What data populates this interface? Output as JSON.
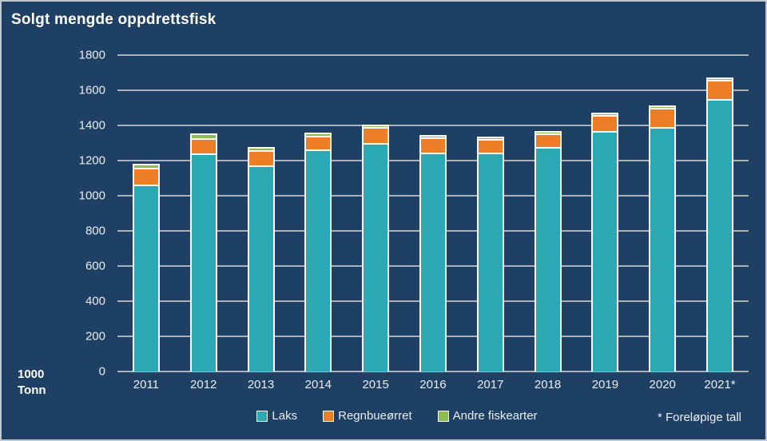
{
  "title": "Solgt mengde oppdrettsfisk",
  "y_unit": {
    "line1": "1000",
    "line2": "Tonn"
  },
  "footnote": "* Foreløpige tall",
  "colors": {
    "background": "#1D4064",
    "gridline": "#A9B2BB",
    "text": "#E9EDF2",
    "title_text": "#FFFFFF",
    "bar_border": "#FFFFFF",
    "laks": "#2AA9B4",
    "regnbueorret": "#EE7D28",
    "andre_fiskearter": "#8CBC52"
  },
  "chart_data": {
    "type": "bar",
    "stacked": true,
    "title": "Solgt mengde oppdrettsfisk",
    "ylabel": "1000 Tonn",
    "xlabel": "",
    "ylim": [
      0,
      1800
    ],
    "ytick_step": 200,
    "grid": true,
    "legend_position": "bottom",
    "annotation": "* Foreløpige tall",
    "categories": [
      "2011",
      "2012",
      "2013",
      "2014",
      "2015",
      "2016",
      "2017",
      "2018",
      "2019",
      "2020",
      "2021*"
    ],
    "series": [
      {
        "name": "Laks",
        "color": "#2AA9B4",
        "values": [
          1055,
          1230,
          1165,
          1255,
          1290,
          1235,
          1235,
          1270,
          1360,
          1380,
          1540
        ]
      },
      {
        "name": "Regnbueørret",
        "color": "#EE7D28",
        "values": [
          85,
          75,
          75,
          70,
          80,
          75,
          70,
          70,
          80,
          100,
          100
        ]
      },
      {
        "name": "Andre fiskearter",
        "color": "#8CBC52",
        "values": [
          15,
          20,
          8,
          8,
          5,
          5,
          5,
          5,
          5,
          5,
          5
        ]
      }
    ]
  }
}
